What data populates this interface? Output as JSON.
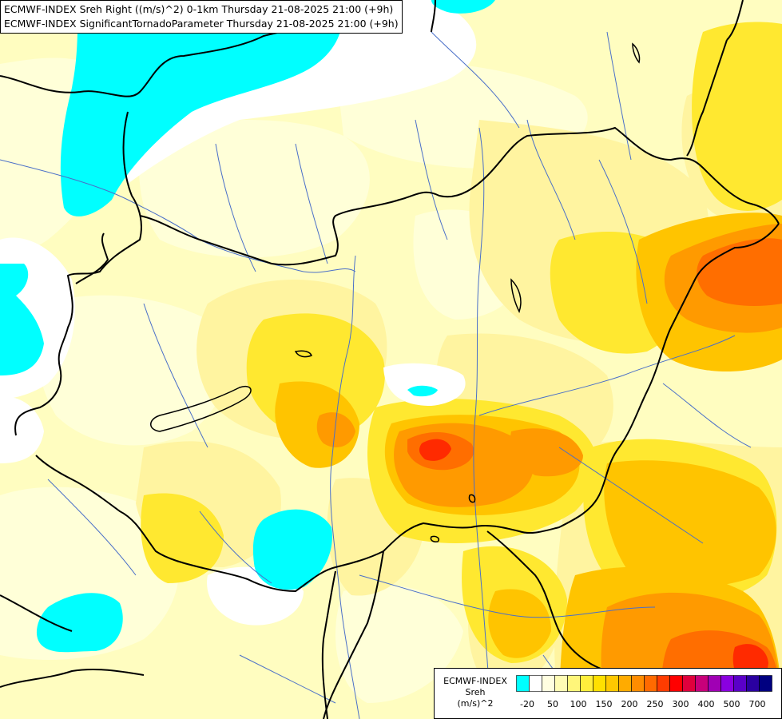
{
  "title": {
    "line1": "ECMWF-INDEX Sreh Right ((m/s)^2) 0-1km Thursday 21-08-2025 21:00 (+9h)",
    "line2": "ECMWF-INDEX SignificantTornadoParameter Thursday 21-08-2025 21:00 (+9h)"
  },
  "legend": {
    "line1": "ECMWF-INDEX",
    "line2": "Sreh",
    "line3": "(m/s)^2",
    "labels": [
      "-20",
      "50",
      "100",
      "150",
      "200",
      "250",
      "300",
      "400",
      "500",
      "700"
    ],
    "colors": [
      "#00ffff",
      "#ffffff",
      "#fffee0",
      "#fffcb5",
      "#fff67a",
      "#ffef3c",
      "#ffe000",
      "#ffc800",
      "#ffab00",
      "#ff8c00",
      "#ff6a00",
      "#ff3c00",
      "#ff0000",
      "#e0003c",
      "#c8007a",
      "#a000b4",
      "#8a00e0",
      "#5a00c8",
      "#2a00a0",
      "#000080"
    ]
  },
  "palette": {
    "background": "#fffdc0",
    "cyan": "#00ffff",
    "white": "#ffffff",
    "pale": "#ffffd0",
    "light_yellow": "#fff8a0",
    "yellow": "#ffee40",
    "gold": "#ffd700",
    "orange_light": "#ffbb00",
    "orange": "#ff9a00",
    "orange_dark": "#ff7a00",
    "red_orange": "#ff5500",
    "red": "#ff2200",
    "border_color": "#000000",
    "river_color": "#4a6fc8"
  }
}
